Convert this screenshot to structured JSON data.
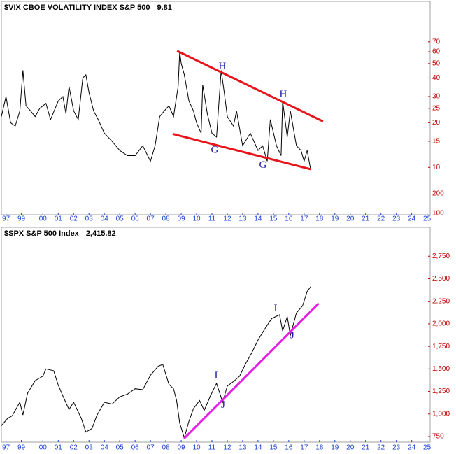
{
  "chart_data": [
    {
      "type": "line",
      "title": "$VIX CBOE VOLATILITY INDEX S&P 500",
      "last_label": "9.81",
      "log_scale": true,
      "color": "#000000",
      "x": [
        1997.3,
        1997.6,
        1997.9,
        1998.2,
        1998.5,
        1998.7,
        1998.9,
        1999.2,
        1999.5,
        1999.8,
        2000.2,
        2000.5,
        2000.8,
        2001.0,
        2001.3,
        2001.5,
        2001.7,
        2002.0,
        2002.3,
        2002.6,
        2002.8,
        2003.0,
        2003.3,
        2003.6,
        2004.0,
        2004.5,
        2005.0,
        2005.5,
        2006.0,
        2006.5,
        2007.0,
        2007.3,
        2007.6,
        2007.9,
        2008.2,
        2008.5,
        2008.8,
        2008.9,
        2009.0,
        2009.2,
        2009.5,
        2009.8,
        2010.0,
        2010.3,
        2010.4,
        2010.7,
        2011.0,
        2011.3,
        2011.6,
        2011.8,
        2012.0,
        2012.4,
        2012.6,
        2013.0,
        2013.5,
        2014.0,
        2014.3,
        2014.6,
        2014.8,
        2015.2,
        2015.5,
        2015.6,
        2015.9,
        2016.1,
        2016.5,
        2016.8,
        2017.0,
        2017.2,
        2017.4,
        2017.45
      ],
      "values": [
        22,
        30,
        20,
        19,
        24,
        45,
        26,
        24,
        22,
        25,
        27,
        21,
        25,
        28,
        30,
        23,
        35,
        24,
        21,
        40,
        42,
        32,
        24,
        21,
        17,
        15,
        13,
        12,
        12,
        14,
        11,
        14,
        22,
        24,
        26,
        22,
        35,
        60,
        50,
        42,
        28,
        24,
        20,
        17,
        36,
        23,
        17,
        16,
        45,
        32,
        22,
        19,
        24,
        14,
        17,
        13,
        14,
        11,
        21,
        14,
        12,
        28,
        16,
        24,
        14,
        13,
        11,
        13,
        10,
        9.81
      ],
      "xlim": [
        1997.3,
        2025.2
      ],
      "ylim": [
        4.8,
        131
      ],
      "yticks": [
        10,
        15,
        20,
        25,
        30,
        40,
        50,
        60,
        70
      ],
      "stray_labels": [
        "200",
        "100"
      ],
      "xticks": [
        {
          "value": 1997.6,
          "label": "97"
        },
        {
          "value": 1998.6,
          "label": "99"
        },
        {
          "value": 2000,
          "label": "00"
        },
        {
          "value": 2001,
          "label": "01"
        },
        {
          "value": 2002,
          "label": "02"
        },
        {
          "value": 2003,
          "label": "03"
        },
        {
          "value": 2004,
          "label": "04"
        },
        {
          "value": 2005,
          "label": "05"
        },
        {
          "value": 2006,
          "label": "06"
        },
        {
          "value": 2007,
          "label": "07"
        },
        {
          "value": 2008,
          "label": "08"
        },
        {
          "value": 2009,
          "label": "09"
        },
        {
          "value": 2010,
          "label": "10"
        },
        {
          "value": 2011,
          "label": "11"
        },
        {
          "value": 2012,
          "label": "12"
        },
        {
          "value": 2013,
          "label": "13"
        },
        {
          "value": 2014,
          "label": "14"
        },
        {
          "value": 2015,
          "label": "15"
        },
        {
          "value": 2016,
          "label": "16"
        },
        {
          "value": 2017,
          "label": "17"
        },
        {
          "value": 2018,
          "label": "18"
        },
        {
          "value": 2019,
          "label": "19"
        },
        {
          "value": 2020,
          "label": "20"
        },
        {
          "value": 2021,
          "label": "21"
        },
        {
          "value": 2022,
          "label": "22"
        },
        {
          "value": 2023,
          "label": "23"
        },
        {
          "value": 2024,
          "label": "24"
        },
        {
          "value": 2025,
          "label": "25"
        }
      ],
      "trendlines": [
        {
          "color": "#e8141c",
          "x": [
            2008.73,
            2018.23
          ],
          "values": [
            60.8,
            20.4
          ]
        },
        {
          "color": "#e8141c",
          "x": [
            2008.45,
            2017.45
          ],
          "values": [
            16.8,
            9.7
          ]
        }
      ],
      "annotations": [
        {
          "text": "H",
          "x": 2011.68,
          "y": 47.4
        },
        {
          "text": "H",
          "x": 2015.64,
          "y": 30.8
        },
        {
          "text": "G",
          "x": 2011.18,
          "y": 13
        },
        {
          "text": "G",
          "x": 2014.32,
          "y": 10.3
        }
      ]
    },
    {
      "type": "line",
      "title": "$SPX S&P 500 Index",
      "last_label": "2,415.82",
      "log_scale": false,
      "color": "#000000",
      "x": [
        1997.3,
        1997.7,
        1998.0,
        1998.5,
        1998.7,
        1999.0,
        1999.5,
        2000.0,
        2000.2,
        2000.7,
        2001.0,
        2001.3,
        2001.7,
        2002.0,
        2002.5,
        2002.8,
        2003.2,
        2003.5,
        2004.0,
        2004.5,
        2005.0,
        2005.5,
        2006.0,
        2006.5,
        2007.0,
        2007.5,
        2007.8,
        2008.2,
        2008.5,
        2008.7,
        2008.9,
        2009.2,
        2009.5,
        2009.8,
        2010.2,
        2010.5,
        2010.9,
        2011.3,
        2011.7,
        2012.0,
        2012.4,
        2012.8,
        2013.2,
        2013.6,
        2014.0,
        2014.5,
        2014.9,
        2015.4,
        2015.6,
        2015.9,
        2016.1,
        2016.5,
        2016.9,
        2017.2,
        2017.45
      ],
      "values": [
        870,
        950,
        980,
        1130,
        990,
        1230,
        1370,
        1420,
        1500,
        1480,
        1320,
        1200,
        1050,
        1130,
        950,
        800,
        840,
        980,
        1130,
        1110,
        1190,
        1220,
        1280,
        1270,
        1430,
        1530,
        1550,
        1330,
        1280,
        1150,
        900,
        735,
        920,
        1060,
        1150,
        1040,
        1200,
        1340,
        1130,
        1310,
        1360,
        1420,
        1560,
        1680,
        1820,
        1960,
        2060,
        2100,
        1920,
        2080,
        1870,
        2120,
        2200,
        2360,
        2415.82
      ],
      "xlim": [
        1997.3,
        2025.2
      ],
      "ylim": [
        688,
        3070
      ],
      "yticks": [
        {
          "value": 750,
          "label": "750"
        },
        {
          "value": 1000,
          "label": "1,000"
        },
        {
          "value": 1250,
          "label": "1,250"
        },
        {
          "value": 1500,
          "label": "1,500"
        },
        {
          "value": 1750,
          "label": "1,750"
        },
        {
          "value": 2000,
          "label": "2,000"
        },
        {
          "value": 2250,
          "label": "2,250"
        },
        {
          "value": 2500,
          "label": "2,500"
        },
        {
          "value": 2750,
          "label": "2,750"
        }
      ],
      "xticks": [
        {
          "value": 1997.6,
          "label": "97"
        },
        {
          "value": 1998.6,
          "label": "99"
        },
        {
          "value": 2000,
          "label": "00"
        },
        {
          "value": 2001,
          "label": "01"
        },
        {
          "value": 2002,
          "label": "02"
        },
        {
          "value": 2003,
          "label": "03"
        },
        {
          "value": 2004,
          "label": "04"
        },
        {
          "value": 2005,
          "label": "05"
        },
        {
          "value": 2006,
          "label": "06"
        },
        {
          "value": 2007,
          "label": "07"
        },
        {
          "value": 2008,
          "label": "08"
        },
        {
          "value": 2009,
          "label": "09"
        },
        {
          "value": 2010,
          "label": "10"
        },
        {
          "value": 2011,
          "label": "11"
        },
        {
          "value": 2012,
          "label": "12"
        },
        {
          "value": 2013,
          "label": "13"
        },
        {
          "value": 2014,
          "label": "14"
        },
        {
          "value": 2015,
          "label": "15"
        },
        {
          "value": 2016,
          "label": "16"
        },
        {
          "value": 2017,
          "label": "17"
        },
        {
          "value": 2018,
          "label": "18"
        },
        {
          "value": 2019,
          "label": "19"
        },
        {
          "value": 2020,
          "label": "20"
        },
        {
          "value": 2021,
          "label": "21"
        },
        {
          "value": 2022,
          "label": "22"
        },
        {
          "value": 2023,
          "label": "23"
        },
        {
          "value": 2024,
          "label": "24"
        },
        {
          "value": 2025,
          "label": "25"
        }
      ],
      "trendlines": [
        {
          "color": "#e61ee6",
          "x": [
            2009.18,
            2017.95
          ],
          "values": [
            727,
            2227
          ]
        }
      ],
      "annotations": [
        {
          "text": "I",
          "x": 2011.27,
          "y": 1422
        },
        {
          "text": "I",
          "x": 2015.14,
          "y": 2164
        },
        {
          "text": "J",
          "x": 2011.73,
          "y": 1094
        },
        {
          "text": "J",
          "x": 2016.23,
          "y": 1867
        }
      ]
    }
  ]
}
